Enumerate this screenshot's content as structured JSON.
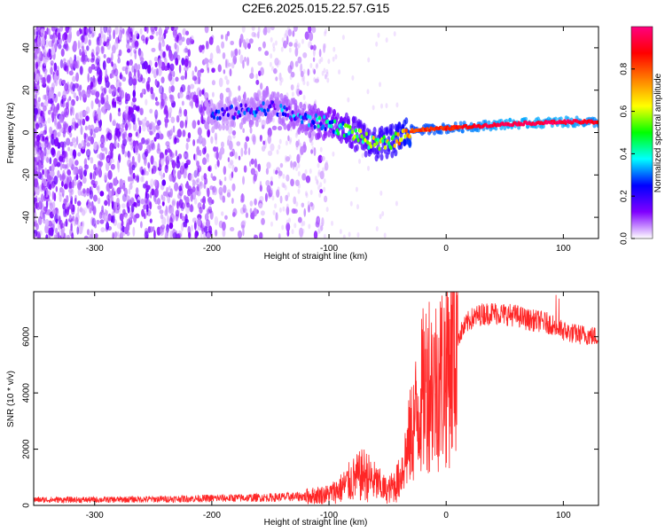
{
  "title": "C2E6.2025.015.22.57.G15",
  "colors": {
    "line": "#ff0000",
    "colormap": [
      "#ffffff",
      "#8000ff",
      "#0000ff",
      "#00ffff",
      "#00ff00",
      "#ffff00",
      "#ff8000",
      "#ff0000",
      "#ff0080"
    ]
  },
  "chart_data": [
    {
      "type": "heatmap",
      "xlabel": "Height of straight line (km)",
      "ylabel": "Frequency (Hz)",
      "xlim": [
        -352,
        130
      ],
      "ylim": [
        -50,
        50
      ],
      "xticks": [
        -300,
        -200,
        -100,
        0,
        100
      ],
      "yticks": [
        -40,
        -20,
        0,
        20,
        40
      ],
      "colorbar": {
        "label": "Normalized spectral amplitude",
        "range": [
          0,
          1
        ],
        "ticks": [
          0.0,
          0.2,
          0.4,
          0.6,
          0.8
        ]
      },
      "ridge": {
        "description_points_x": [
          -200,
          -150,
          -120,
          -100,
          -80,
          -60,
          -45,
          -30,
          0,
          50,
          100,
          130
        ],
        "frequency_hz": [
          8,
          12,
          6,
          4,
          0,
          -6,
          -4,
          1,
          2,
          4,
          5,
          5
        ],
        "amplitude": [
          0.15,
          0.2,
          0.25,
          0.35,
          0.45,
          0.55,
          0.6,
          0.8,
          0.85,
          0.95,
          0.95,
          0.9
        ]
      }
    },
    {
      "type": "line",
      "xlabel": "Height of straight line (km)",
      "ylabel": "SNR (10 * v/v)",
      "xlim": [
        -352,
        130
      ],
      "ylim": [
        0,
        7600
      ],
      "xticks": [
        -300,
        -200,
        -100,
        0,
        100
      ],
      "yticks": [
        0,
        2000,
        4000,
        6000
      ],
      "series": [
        {
          "x": [
            -352,
            -300,
            -250,
            -200,
            -150,
            -120,
            -100,
            -90,
            -80,
            -70,
            -60,
            -50,
            -40,
            -30,
            -25,
            -20,
            -15,
            -10,
            -5,
            0,
            10,
            20,
            30,
            40,
            50,
            60,
            70,
            80,
            90,
            95,
            100,
            110,
            120,
            130
          ],
          "values": [
            200,
            200,
            220,
            250,
            280,
            320,
            400,
            600,
            900,
            1100,
            800,
            500,
            900,
            2500,
            3300,
            4000,
            4600,
            4300,
            4600,
            4900,
            6000,
            6600,
            6800,
            6850,
            6800,
            6750,
            6600,
            6550,
            6450,
            6300,
            6200,
            6100,
            6050,
            6000
          ]
        }
      ]
    }
  ]
}
